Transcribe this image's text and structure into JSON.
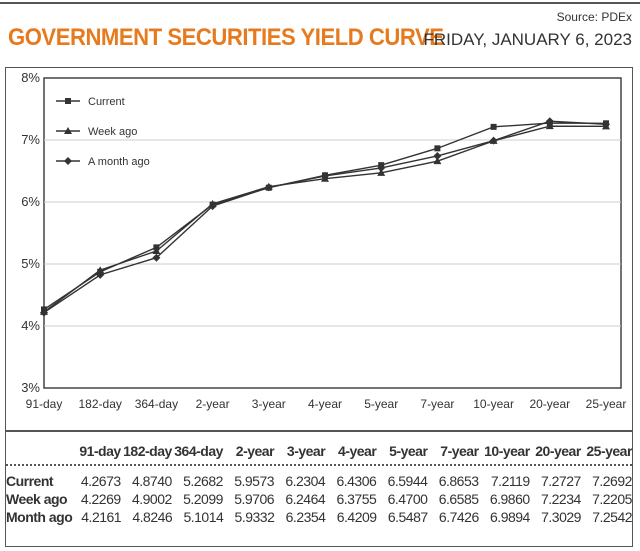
{
  "header": {
    "title": "GOVERNMENT SECURITIES YIELD CURVE",
    "date": "FRIDAY, JANUARY 6, 2023",
    "source": "Source: PDEx"
  },
  "colors": {
    "title": "#e87a1e",
    "line": "#333333"
  },
  "chart_data": {
    "type": "line",
    "categories": [
      "91-day",
      "182-day",
      "364-day",
      "2-year",
      "3-year",
      "4-year",
      "5-year",
      "7-year",
      "10-year",
      "20-year",
      "25-year"
    ],
    "ylim": [
      3,
      8
    ],
    "yticks": [
      "3%",
      "4%",
      "5%",
      "6%",
      "7%",
      "8%"
    ],
    "legend": "top-left",
    "series": [
      {
        "name": "Current",
        "marker": "square",
        "values": [
          4.2673,
          4.874,
          5.2682,
          5.9573,
          6.2304,
          6.4306,
          6.5944,
          6.8653,
          7.2119,
          7.2727,
          7.2692
        ]
      },
      {
        "name": "Week ago",
        "marker": "triangle",
        "values": [
          4.2269,
          4.9002,
          5.2099,
          5.9706,
          6.2464,
          6.3755,
          6.47,
          6.6585,
          6.986,
          7.2234,
          7.2205
        ]
      },
      {
        "name": "A month ago",
        "marker": "diamond",
        "values": [
          4.2161,
          4.8246,
          5.1014,
          5.9332,
          6.2354,
          6.4209,
          6.5487,
          6.7426,
          6.9894,
          7.3029,
          7.2542
        ]
      }
    ]
  },
  "table": {
    "columns": [
      "91-day",
      "182-day",
      "364-day",
      "2-year",
      "3-year",
      "4-year",
      "5-year",
      "7-year",
      "10-year",
      "20-year",
      "25-year"
    ],
    "rows": [
      {
        "label": "Current",
        "values": [
          "4.2673",
          "4.8740",
          "5.2682",
          "5.9573",
          "6.2304",
          "6.4306",
          "6.5944",
          "6.8653",
          "7.2119",
          "7.2727",
          "7.2692"
        ]
      },
      {
        "label": "Week ago",
        "values": [
          "4.2269",
          "4.9002",
          "5.2099",
          "5.9706",
          "6.2464",
          "6.3755",
          "6.4700",
          "6.6585",
          "6.9860",
          "7.2234",
          "7.2205"
        ]
      },
      {
        "label": "Month ago",
        "values": [
          "4.2161",
          "4.8246",
          "5.1014",
          "5.9332",
          "6.2354",
          "6.4209",
          "6.5487",
          "6.7426",
          "6.9894",
          "7.3029",
          "7.2542"
        ]
      }
    ]
  }
}
